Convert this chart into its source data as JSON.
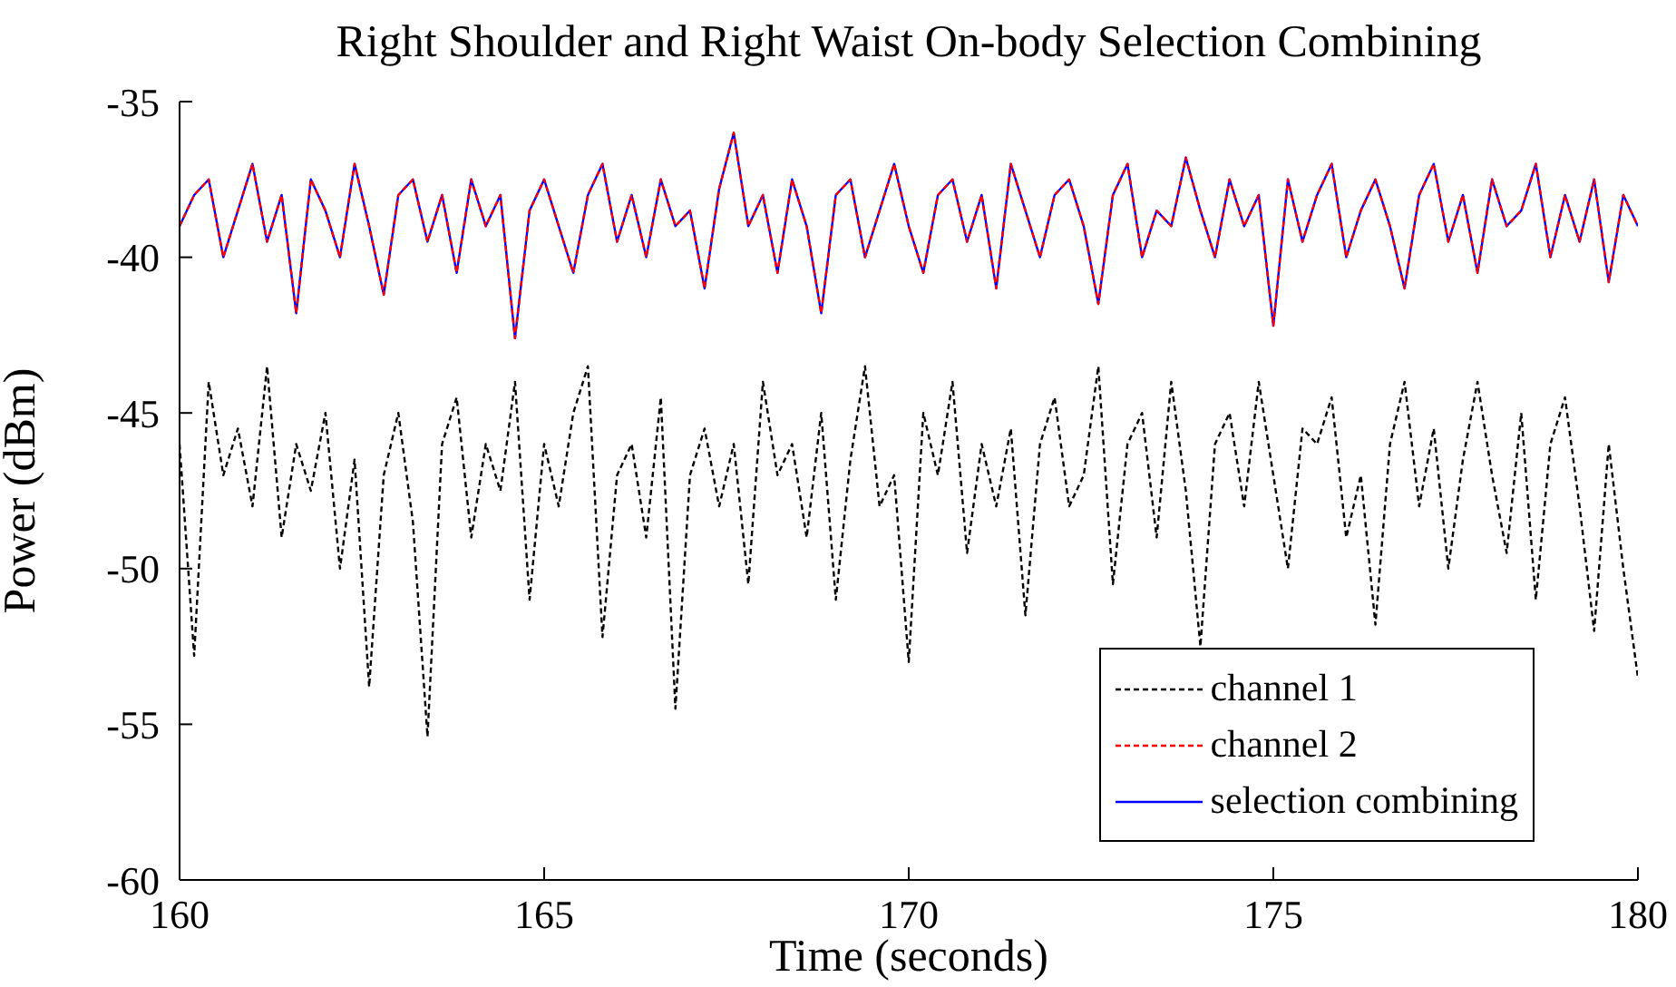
{
  "chart_data": {
    "type": "line",
    "title": "Right Shoulder and Right Waist On-body Selection Combining",
    "xlabel": "Time (seconds)",
    "ylabel": "Power (dBm)",
    "x": [
      160,
      160.2,
      160.4,
      160.6,
      160.8,
      161,
      161.2,
      161.4,
      161.6,
      161.8,
      162,
      162.2,
      162.4,
      162.6,
      162.8,
      163,
      163.2,
      163.4,
      163.6,
      163.8,
      164,
      164.2,
      164.4,
      164.6,
      164.8,
      165,
      165.2,
      165.4,
      165.6,
      165.8,
      166,
      166.2,
      166.4,
      166.6,
      166.8,
      167,
      167.2,
      167.4,
      167.6,
      167.8,
      168,
      168.2,
      168.4,
      168.6,
      168.8,
      169,
      169.2,
      169.4,
      169.6,
      169.8,
      170,
      170.2,
      170.4,
      170.6,
      170.8,
      171,
      171.2,
      171.4,
      171.6,
      171.8,
      172,
      172.2,
      172.4,
      172.6,
      172.8,
      173,
      173.2,
      173.4,
      173.6,
      173.8,
      174,
      174.2,
      174.4,
      174.6,
      174.8,
      175,
      175.2,
      175.4,
      175.6,
      175.8,
      176,
      176.2,
      176.4,
      176.6,
      176.8,
      177,
      177.2,
      177.4,
      177.6,
      177.8,
      178,
      178.2,
      178.4,
      178.6,
      178.8,
      179,
      179.2,
      179.4,
      179.6,
      179.8,
      180
    ],
    "series": [
      {
        "name": "channel 1",
        "color": "#000000",
        "line_style": "dashed",
        "values": [
          -46,
          -52.8,
          -44,
          -47,
          -45.5,
          -48,
          -43.5,
          -49,
          -46,
          -47.5,
          -45,
          -50,
          -46.5,
          -53.8,
          -47,
          -45,
          -48.5,
          -55.4,
          -46,
          -44.5,
          -49,
          -46,
          -47.5,
          -44,
          -51,
          -46,
          -48,
          -45,
          -43.5,
          -52.2,
          -47,
          -46,
          -49,
          -44.5,
          -54.5,
          -47,
          -45.5,
          -48,
          -46,
          -50.5,
          -44,
          -47,
          -46,
          -49,
          -45,
          -51,
          -46.5,
          -43.5,
          -48,
          -47,
          -53,
          -45,
          -47,
          -44,
          -49.5,
          -46,
          -48,
          -45.5,
          -51.5,
          -46,
          -44.5,
          -48,
          -47,
          -43.5,
          -50.5,
          -46,
          -45,
          -49,
          -44,
          -47.5,
          -52.5,
          -46,
          -45,
          -48,
          -44,
          -47,
          -50,
          -45.5,
          -46,
          -44.5,
          -49,
          -47,
          -51.8,
          -46,
          -44,
          -48,
          -45.5,
          -50,
          -46.5,
          -44,
          -47,
          -49.5,
          -45,
          -51,
          -46,
          -44.5,
          -48,
          -52,
          -46,
          -50,
          -53.5
        ]
      },
      {
        "name": "channel 2",
        "color": "#ff0000",
        "line_style": "dashed",
        "values": [
          -39,
          -38,
          -37.5,
          -40,
          -38.5,
          -37,
          -39.5,
          -38,
          -41.8,
          -37.5,
          -38.5,
          -40,
          -37,
          -39,
          -41.2,
          -38,
          -37.5,
          -39.5,
          -38,
          -40.5,
          -37.5,
          -39,
          -38,
          -42.6,
          -38.5,
          -37.5,
          -39,
          -40.5,
          -38,
          -37,
          -39.5,
          -38,
          -40,
          -37.5,
          -39,
          -38.5,
          -41,
          -37.8,
          -36,
          -39,
          -38,
          -40.5,
          -37.5,
          -39,
          -41.8,
          -38,
          -37.5,
          -40,
          -38.5,
          -37,
          -39,
          -40.5,
          -38,
          -37.5,
          -39.5,
          -38,
          -41,
          -37,
          -38.5,
          -40,
          -38,
          -37.5,
          -39,
          -41.5,
          -38,
          -37,
          -40,
          -38.5,
          -39,
          -36.8,
          -38.5,
          -40,
          -37.5,
          -39,
          -38,
          -42.2,
          -37.5,
          -39.5,
          -38,
          -37,
          -40,
          -38.5,
          -37.5,
          -39,
          -41,
          -38,
          -37,
          -39.5,
          -38,
          -40.5,
          -37.5,
          -39,
          -38.5,
          -37,
          -40,
          -38,
          -39.5,
          -37.5,
          -40.8,
          -38,
          -39
        ]
      },
      {
        "name": "selection combining",
        "color": "#0000ff",
        "line_style": "solid",
        "values": [
          -39,
          -38,
          -37.5,
          -40,
          -38.5,
          -37,
          -39.5,
          -38,
          -41.8,
          -37.5,
          -38.5,
          -40,
          -37,
          -39,
          -41.2,
          -38,
          -37.5,
          -39.5,
          -38,
          -40.5,
          -37.5,
          -39,
          -38,
          -42.6,
          -38.5,
          -37.5,
          -39,
          -40.5,
          -38,
          -37,
          -39.5,
          -38,
          -40,
          -37.5,
          -39,
          -38.5,
          -41,
          -37.8,
          -36,
          -39,
          -38,
          -40.5,
          -37.5,
          -39,
          -41.8,
          -38,
          -37.5,
          -40,
          -38.5,
          -37,
          -39,
          -40.5,
          -38,
          -37.5,
          -39.5,
          -38,
          -41,
          -37,
          -38.5,
          -40,
          -38,
          -37.5,
          -39,
          -41.5,
          -38,
          -37,
          -40,
          -38.5,
          -39,
          -36.8,
          -38.5,
          -40,
          -37.5,
          -39,
          -38,
          -42.2,
          -37.5,
          -39.5,
          -38,
          -37,
          -40,
          -38.5,
          -37.5,
          -39,
          -41,
          -38,
          -37,
          -39.5,
          -38,
          -40.5,
          -37.5,
          -39,
          -38.5,
          -37,
          -40,
          -38,
          -39.5,
          -37.5,
          -40.8,
          -38,
          -39
        ]
      }
    ],
    "xlim": [
      160,
      180
    ],
    "xticks": [
      160,
      165,
      170,
      175,
      180
    ],
    "ylim": [
      -60,
      -35
    ],
    "yticks": [
      -60,
      -55,
      -50,
      -45,
      -40,
      -35
    ],
    "grid": false,
    "legend": "bottom right",
    "marker": "none"
  }
}
